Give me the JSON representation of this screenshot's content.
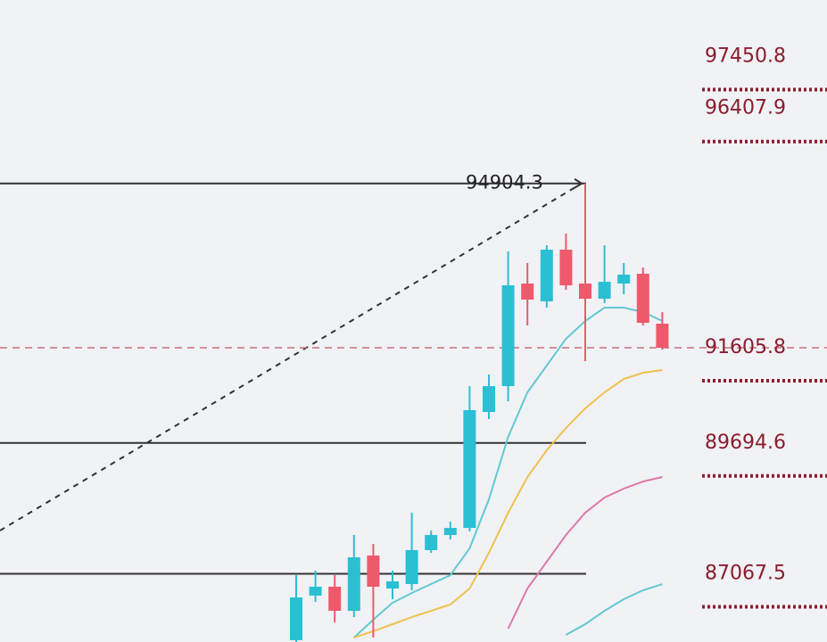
{
  "chart_data": {
    "type": "candlestick",
    "up_color": "#2bbfd4",
    "down_color": "#ee5a6c",
    "open": [
      85735,
      86630,
      86809,
      86325,
      87435,
      86773,
      86862,
      87543,
      87847,
      87990,
      90317,
      90836,
      92895,
      92537,
      93575,
      92895,
      92590,
      92895,
      93092,
      92089
    ],
    "high": [
      87041,
      87131,
      87041,
      87847,
      87668,
      87131,
      88294,
      87936,
      88115,
      90836,
      91069,
      93539,
      93306,
      93664,
      93897,
      94904.3,
      93664,
      93306,
      93217,
      92322
    ],
    "low": [
      85699,
      86504,
      86093,
      86200,
      85788,
      86558,
      86737,
      87489,
      87757,
      87918,
      90174,
      90532,
      92053,
      92411,
      92769,
      91337,
      92501,
      92680,
      92053,
      91570
    ],
    "close": [
      86594,
      86809,
      86325,
      87399,
      86809,
      86916,
      87543,
      87847,
      87990,
      90353,
      90836,
      92859,
      92572,
      93575,
      92859,
      92590,
      92930,
      93074,
      92107,
      91606
    ],
    "moving_averages": [
      {
        "color": "#62c9d3",
        "values": [
          null,
          null,
          null,
          85788,
          86146,
          86486,
          86683,
          86862,
          87041,
          87578,
          88563,
          89816,
          90711,
          91248,
          91785,
          92143,
          92411,
          92411,
          92322,
          92143
        ]
      },
      {
        "color": "#f0c150",
        "values": [
          null,
          null,
          null,
          85788,
          85914,
          86057,
          86200,
          86325,
          86451,
          86773,
          87489,
          88294,
          89010,
          89547,
          89995,
          90389,
          90711,
          90979,
          91105,
          91158
        ]
      },
      {
        "color": "#dd7aa6",
        "values": [
          null,
          null,
          null,
          null,
          null,
          null,
          null,
          null,
          null,
          null,
          null,
          85967,
          86773,
          87310,
          87847,
          88294,
          88599,
          88778,
          88921,
          89010
        ]
      },
      {
        "color": "#62c9d3",
        "values": [
          null,
          null,
          null,
          null,
          null,
          null,
          null,
          null,
          null,
          null,
          null,
          null,
          null,
          null,
          85842,
          86057,
          86325,
          86558,
          86737,
          86862
        ]
      }
    ],
    "levels": [
      97450.8,
      96407.9,
      91605.8,
      89694.6,
      87067.5
    ],
    "level_color": "#8b1c2e",
    "hlines": [
      94904.3,
      89694.6,
      87067.5
    ],
    "last_price": 91605.8,
    "peak_label": 94904.3,
    "ylim": [
      85699,
      98587
    ]
  }
}
